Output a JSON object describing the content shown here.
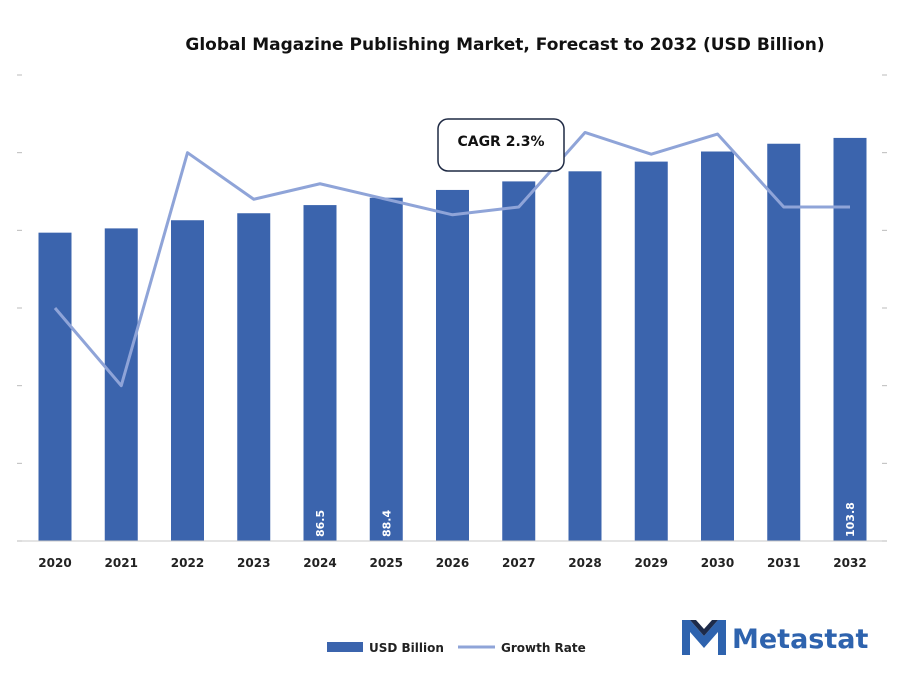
{
  "chart_data": {
    "type": "bar",
    "title": "Global Magazine Publishing Market, Forecast to 2032 (USD Billion)",
    "xlabel": "",
    "ylabel": "",
    "categories": [
      "2020",
      "2021",
      "2022",
      "2023",
      "2024",
      "2025",
      "2026",
      "2027",
      "2028",
      "2029",
      "2030",
      "2031",
      "2032"
    ],
    "series": [
      {
        "name": "USD Billion",
        "type": "bar",
        "color": "#3b64ad",
        "values": [
          79.4,
          80.5,
          82.6,
          84.4,
          86.5,
          88.4,
          90.4,
          92.6,
          95.2,
          97.7,
          100.3,
          102.3,
          103.8
        ]
      },
      {
        "name": "Growth Rate",
        "type": "line",
        "color": "#8fa4d8",
        "values": [
          1.5,
          1.0,
          2.5,
          2.2,
          2.3,
          2.2,
          2.1,
          2.15,
          2.63,
          2.49,
          2.62,
          2.15,
          2.15
        ]
      }
    ],
    "data_labels": [
      {
        "index": 4,
        "text": "86.5"
      },
      {
        "index": 5,
        "text": "88.4"
      },
      {
        "index": 12,
        "text": "103.8"
      }
    ],
    "ylim": [
      0,
      120
    ],
    "growth_ylim": [
      0.0,
      3.0
    ],
    "grid": false,
    "legend": "bottom-center",
    "annotation": {
      "text": "CAGR 2.3%"
    }
  },
  "brand": {
    "name": "Metastat",
    "color": "#2e63ae"
  }
}
